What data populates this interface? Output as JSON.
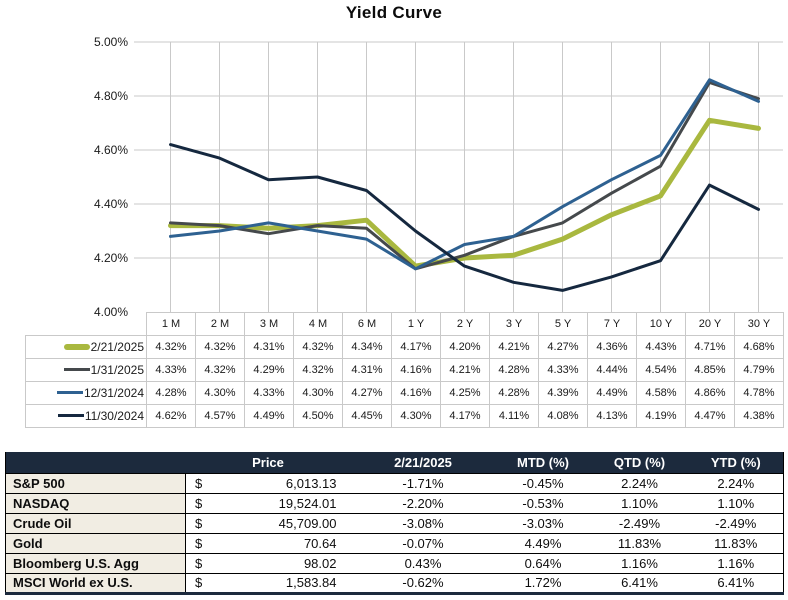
{
  "colors": {
    "grid": "#c9c9c9",
    "axis_text": "#1a1a1a",
    "header_bg": "#1c2a3d",
    "label_bg": "#f1ede3"
  },
  "chart_data": {
    "type": "line",
    "title": "Yield Curve",
    "categories": [
      "1 M",
      "2 M",
      "3 M",
      "4 M",
      "6 M",
      "1 Y",
      "2 Y",
      "3 Y",
      "5 Y",
      "7 Y",
      "10 Y",
      "20 Y",
      "30 Y"
    ],
    "ylim": [
      4.0,
      5.0
    ],
    "y_ticks": [
      "5.00%",
      "4.80%",
      "4.60%",
      "4.40%",
      "4.20%",
      "4.00%"
    ],
    "grid": true,
    "legend_position": "data-table-below-chart",
    "series": [
      {
        "name": "2/21/2025",
        "color": "#a9b83f",
        "stroke_width": 5,
        "values": [
          4.32,
          4.32,
          4.31,
          4.32,
          4.34,
          4.17,
          4.2,
          4.21,
          4.27,
          4.36,
          4.43,
          4.71,
          4.68
        ]
      },
      {
        "name": "1/31/2025",
        "color": "#45494c",
        "stroke_width": 3,
        "values": [
          4.33,
          4.32,
          4.29,
          4.32,
          4.31,
          4.16,
          4.21,
          4.28,
          4.33,
          4.44,
          4.54,
          4.85,
          4.79
        ]
      },
      {
        "name": "12/31/2024",
        "color": "#2e6191",
        "stroke_width": 3,
        "values": [
          4.28,
          4.3,
          4.33,
          4.3,
          4.27,
          4.16,
          4.25,
          4.28,
          4.39,
          4.49,
          4.58,
          4.86,
          4.78
        ]
      },
      {
        "name": "11/30/2024",
        "color": "#15283f",
        "stroke_width": 3,
        "values": [
          4.62,
          4.57,
          4.49,
          4.5,
          4.45,
          4.3,
          4.17,
          4.11,
          4.08,
          4.13,
          4.19,
          4.47,
          4.38
        ]
      }
    ]
  },
  "market_table": {
    "currency_symbol": "$",
    "headers": {
      "asset": "",
      "price": "Price",
      "date": "2/21/2025",
      "mtd": "MTD (%)",
      "qtd": "QTD (%)",
      "ytd": "YTD (%)"
    },
    "rows": [
      {
        "asset": "S&P 500",
        "price": "6,013.13",
        "day": "-1.71%",
        "mtd": "-0.45%",
        "qtd": "2.24%",
        "ytd": "2.24%"
      },
      {
        "asset": "NASDAQ",
        "price": "19,524.01",
        "day": "-2.20%",
        "mtd": "-0.53%",
        "qtd": "1.10%",
        "ytd": "1.10%"
      },
      {
        "asset": "Crude Oil",
        "price": "45,709.00",
        "day": "-3.08%",
        "mtd": "-3.03%",
        "qtd": "-2.49%",
        "ytd": "-2.49%"
      },
      {
        "asset": "Gold",
        "price": "70.64",
        "day": "-0.07%",
        "mtd": "4.49%",
        "qtd": "11.83%",
        "ytd": "11.83%"
      },
      {
        "asset": "Bloomberg U.S. Agg",
        "price": "98.02",
        "day": "0.43%",
        "mtd": "0.64%",
        "qtd": "1.16%",
        "ytd": "1.16%"
      },
      {
        "asset": "MSCI World ex U.S.",
        "price": "1,583.84",
        "day": "-0.62%",
        "mtd": "1.72%",
        "qtd": "6.41%",
        "ytd": "6.41%"
      }
    ]
  }
}
